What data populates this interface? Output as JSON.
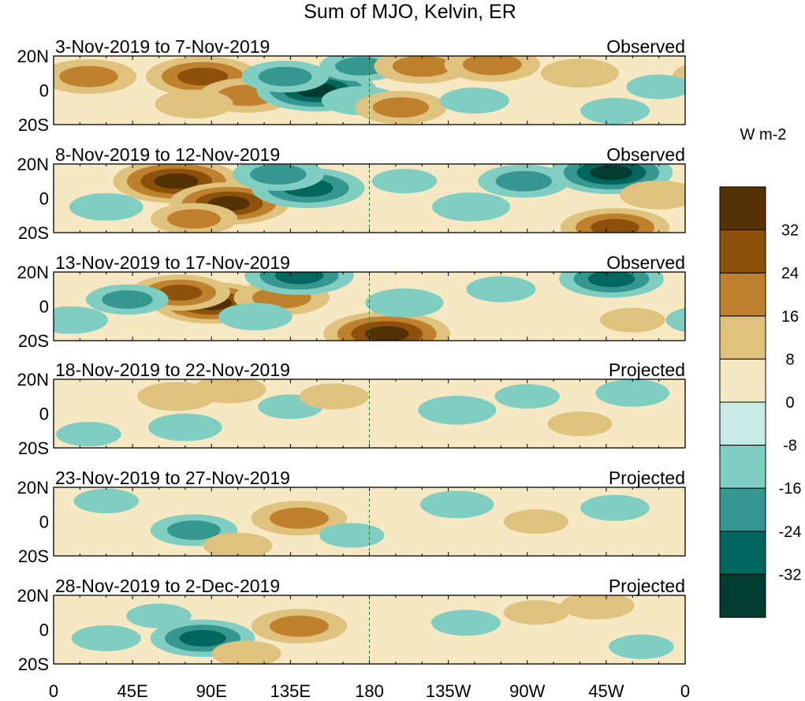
{
  "chart_data": {
    "type": "heatmap",
    "title": "Sum of MJO, Kelvin, ER",
    "x_ticks": [
      "0",
      "45E",
      "90E",
      "135E",
      "180",
      "135W",
      "90W",
      "45W",
      "0"
    ],
    "x_tick_lons": [
      0,
      45,
      90,
      135,
      180,
      225,
      270,
      315,
      360
    ],
    "y_ticks": [
      "20N",
      "0",
      "20S"
    ],
    "y_tick_lats": [
      20,
      0,
      -20
    ],
    "xlim": [
      0,
      360
    ],
    "ylim": [
      -20,
      20
    ],
    "reference_lon": 180,
    "colorbar": {
      "unit_label": "W m-2",
      "tick_labels": [
        "32",
        "24",
        "16",
        "8",
        "0",
        "-8",
        "-16",
        "-24",
        "-32"
      ],
      "levels": [
        32,
        24,
        16,
        8,
        0,
        -8,
        -16,
        -24,
        -32
      ],
      "colors": [
        "#543005",
        "#8c510a",
        "#bf812d",
        "#dfc27d",
        "#f6e8c3",
        "#c7eae5",
        "#80cdc1",
        "#35978f",
        "#01665e",
        "#003c30"
      ]
    },
    "panels": [
      {
        "date_range": "3-Nov-2019 to 7-Nov-2019",
        "status": "Observed",
        "features": [
          {
            "lon": 20,
            "lat": 8,
            "value": 22
          },
          {
            "lon": 85,
            "lat": 8,
            "value": 30
          },
          {
            "lon": 110,
            "lat": -3,
            "value": 22
          },
          {
            "lon": 80,
            "lat": -8,
            "value": 14
          },
          {
            "lon": 150,
            "lat": 0,
            "value": -33
          },
          {
            "lon": 132,
            "lat": 8,
            "value": -18
          },
          {
            "lon": 175,
            "lat": 14,
            "value": -16
          },
          {
            "lon": 175,
            "lat": -6,
            "value": -14
          },
          {
            "lon": 198,
            "lat": -10,
            "value": 20
          },
          {
            "lon": 210,
            "lat": 14,
            "value": 22
          },
          {
            "lon": 250,
            "lat": 15,
            "value": 22
          },
          {
            "lon": 240,
            "lat": -6,
            "value": -10
          },
          {
            "lon": 300,
            "lat": 10,
            "value": 14
          },
          {
            "lon": 320,
            "lat": -12,
            "value": -10
          },
          {
            "lon": 345,
            "lat": 2,
            "value": -8
          }
        ]
      },
      {
        "date_range": "8-Nov-2019 to 12-Nov-2019",
        "status": "Observed",
        "features": [
          {
            "lon": 70,
            "lat": 10,
            "value": 36
          },
          {
            "lon": 100,
            "lat": -3,
            "value": 33
          },
          {
            "lon": 80,
            "lat": -12,
            "value": 18
          },
          {
            "lon": 145,
            "lat": 6,
            "value": -30
          },
          {
            "lon": 128,
            "lat": 14,
            "value": -20
          },
          {
            "lon": 30,
            "lat": -5,
            "value": -12
          },
          {
            "lon": 238,
            "lat": -5,
            "value": -14
          },
          {
            "lon": 268,
            "lat": 10,
            "value": -20
          },
          {
            "lon": 318,
            "lat": 15,
            "value": -34
          },
          {
            "lon": 320,
            "lat": -17,
            "value": 28
          },
          {
            "lon": 345,
            "lat": 2,
            "value": 14
          },
          {
            "lon": 200,
            "lat": 10,
            "value": -8
          }
        ]
      },
      {
        "date_range": "13-Nov-2019 to 17-Nov-2019",
        "status": "Observed",
        "features": [
          {
            "lon": 90,
            "lat": 2,
            "value": 32
          },
          {
            "lon": 72,
            "lat": 8,
            "value": 24
          },
          {
            "lon": 130,
            "lat": 5,
            "value": 22
          },
          {
            "lon": 140,
            "lat": 18,
            "value": -28
          },
          {
            "lon": 42,
            "lat": 4,
            "value": -16
          },
          {
            "lon": 115,
            "lat": -6,
            "value": -12
          },
          {
            "lon": 190,
            "lat": -16,
            "value": 36
          },
          {
            "lon": 200,
            "lat": 2,
            "value": -14
          },
          {
            "lon": 255,
            "lat": 10,
            "value": -10
          },
          {
            "lon": 318,
            "lat": 16,
            "value": -26
          },
          {
            "lon": 330,
            "lat": -8,
            "value": 8
          },
          {
            "lon": 10,
            "lat": -8,
            "value": -12
          }
        ]
      },
      {
        "date_range": "18-Nov-2019 to 22-Nov-2019",
        "status": "Projected",
        "features": [
          {
            "lon": 70,
            "lat": 10,
            "value": 14
          },
          {
            "lon": 100,
            "lat": 14,
            "value": 12
          },
          {
            "lon": 75,
            "lat": -8,
            "value": -12
          },
          {
            "lon": 135,
            "lat": 4,
            "value": -8
          },
          {
            "lon": 160,
            "lat": 10,
            "value": 10
          },
          {
            "lon": 230,
            "lat": 2,
            "value": -14
          },
          {
            "lon": 270,
            "lat": 10,
            "value": -8
          },
          {
            "lon": 300,
            "lat": -6,
            "value": 8
          },
          {
            "lon": 330,
            "lat": 12,
            "value": -12
          },
          {
            "lon": 20,
            "lat": -12,
            "value": -8
          }
        ]
      },
      {
        "date_range": "23-Nov-2019 to 27-Nov-2019",
        "status": "Projected",
        "features": [
          {
            "lon": 80,
            "lat": -5,
            "value": -18
          },
          {
            "lon": 140,
            "lat": 2,
            "value": 22
          },
          {
            "lon": 105,
            "lat": -14,
            "value": 10
          },
          {
            "lon": 30,
            "lat": 12,
            "value": -8
          },
          {
            "lon": 170,
            "lat": -8,
            "value": -8
          },
          {
            "lon": 230,
            "lat": 10,
            "value": -12
          },
          {
            "lon": 275,
            "lat": 0,
            "value": 8
          },
          {
            "lon": 320,
            "lat": 8,
            "value": -10
          },
          {
            "lon": 345,
            "lat": -10,
            "value": 6
          }
        ]
      },
      {
        "date_range": "28-Nov-2019 to 2-Dec-2019",
        "status": "Projected",
        "features": [
          {
            "lon": 85,
            "lat": -5,
            "value": -26
          },
          {
            "lon": 60,
            "lat": 8,
            "value": -8
          },
          {
            "lon": 140,
            "lat": 2,
            "value": 22
          },
          {
            "lon": 110,
            "lat": -14,
            "value": 10
          },
          {
            "lon": 30,
            "lat": -5,
            "value": -10
          },
          {
            "lon": 235,
            "lat": 4,
            "value": -10
          },
          {
            "lon": 275,
            "lat": 10,
            "value": 8
          },
          {
            "lon": 310,
            "lat": 14,
            "value": 12
          },
          {
            "lon": 335,
            "lat": -10,
            "value": -8
          }
        ]
      }
    ]
  }
}
